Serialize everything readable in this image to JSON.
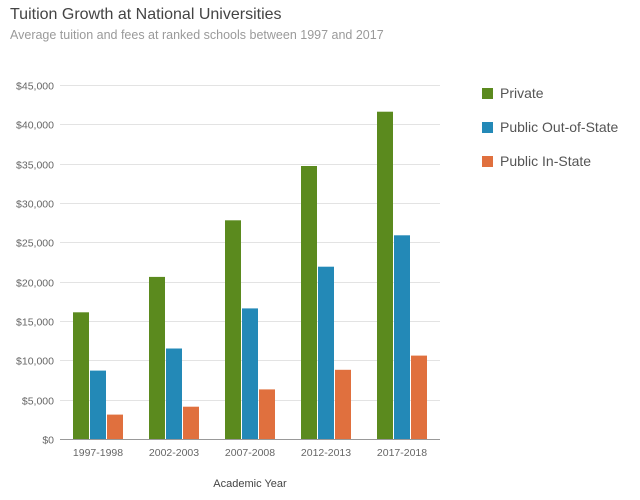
{
  "chart_data": {
    "type": "bar",
    "title": "Tuition Growth at National Universities",
    "subtitle": "Average tuition and fees at ranked schools between 1997 and 2017",
    "xlabel": "Academic Year",
    "ylabel": "",
    "ylim": [
      0,
      45000
    ],
    "yticks": [
      0,
      5000,
      10000,
      15000,
      20000,
      25000,
      30000,
      35000,
      40000,
      45000
    ],
    "ytick_labels": [
      "$0",
      "$5,000",
      "$10,000",
      "$15,000",
      "$20,000",
      "$25,000",
      "$30,000",
      "$35,000",
      "$40,000",
      "$45,000"
    ],
    "grid": true,
    "legend_position": "right",
    "categories": [
      "1997-1998",
      "2002-2003",
      "2007-2008",
      "2012-2013",
      "2017-2018"
    ],
    "series": [
      {
        "name": "Private",
        "color": "#5b8a1e",
        "values": [
          16100,
          20600,
          27800,
          34700,
          41600
        ]
      },
      {
        "name": "Public Out-of-State",
        "color": "#2389b7",
        "values": [
          8700,
          11500,
          16600,
          21900,
          25900
        ]
      },
      {
        "name": "Public In-State",
        "color": "#e0703e",
        "values": [
          3100,
          4100,
          6300,
          8800,
          10600
        ]
      }
    ]
  }
}
